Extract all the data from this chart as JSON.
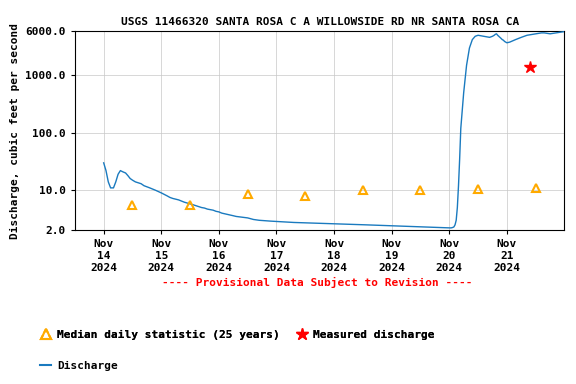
{
  "title": "USGS 11466320 SANTA ROSA C A WILLOWSIDE RD NR SANTA ROSA CA",
  "ylabel": "Discharge, cubic feet per second",
  "provisional_text": "---- Provisional Data Subject to Revision ----",
  "provisional_color": "#ff0000",
  "line_color": "#1a7abf",
  "triangle_color": "#ffaa00",
  "star_color": "#ff0000",
  "ylim_log": [
    2.0,
    6000.0
  ],
  "yticks": [
    2.0,
    10.0,
    100.0,
    1000.0,
    6000.0
  ],
  "ytick_labels": [
    "2.0",
    "10.0",
    "100.0",
    "1000.0",
    "6000.0"
  ],
  "discharge_x": [
    0.0,
    0.04,
    0.08,
    0.12,
    0.17,
    0.21,
    0.25,
    0.29,
    0.33,
    0.38,
    0.42,
    0.46,
    0.5,
    0.55,
    0.6,
    0.65,
    0.7,
    0.75,
    0.8,
    0.85,
    0.9,
    0.95,
    1.0,
    1.05,
    1.1,
    1.15,
    1.2,
    1.25,
    1.3,
    1.35,
    1.4,
    1.45,
    1.5,
    1.55,
    1.6,
    1.65,
    1.7,
    1.75,
    1.8,
    1.85,
    1.9,
    1.95,
    2.0,
    2.05,
    2.1,
    2.15,
    2.2,
    2.25,
    2.3,
    2.35,
    2.4,
    2.45,
    2.5,
    2.55,
    2.6,
    2.65,
    2.7,
    2.75,
    2.8,
    2.85,
    2.9,
    2.95,
    3.0,
    3.05,
    3.1,
    3.15,
    3.2,
    3.25,
    3.3,
    3.35,
    3.4,
    3.45,
    3.5,
    3.55,
    3.6,
    3.65,
    3.7,
    3.75,
    3.8,
    3.85,
    3.9,
    3.95,
    4.0,
    4.05,
    4.1,
    4.15,
    4.2,
    4.25,
    4.3,
    4.35,
    4.4,
    4.45,
    4.5,
    4.55,
    4.6,
    4.65,
    4.7,
    4.75,
    4.8,
    4.85,
    4.9,
    4.95,
    5.0,
    5.05,
    5.1,
    5.15,
    5.2,
    5.25,
    5.3,
    5.35,
    5.4,
    5.45,
    5.5,
    5.55,
    5.6,
    5.65,
    5.7,
    5.75,
    5.8,
    5.85,
    5.9,
    5.95,
    6.0,
    6.02,
    6.04,
    6.06,
    6.08,
    6.1,
    6.12,
    6.14,
    6.16,
    6.18,
    6.2,
    6.25,
    6.3,
    6.35,
    6.4,
    6.45,
    6.5,
    6.55,
    6.6,
    6.65,
    6.7,
    6.75,
    6.78,
    6.8,
    6.82,
    6.84,
    6.86,
    6.88,
    6.9,
    6.92,
    6.94,
    6.96,
    6.98,
    7.0,
    7.05,
    7.1,
    7.15,
    7.2,
    7.25,
    7.3,
    7.35,
    7.4,
    7.45,
    7.5,
    7.55,
    7.6,
    7.65,
    7.7,
    7.75,
    7.8,
    7.85,
    7.9,
    7.95,
    8.0
  ],
  "discharge_y": [
    30,
    22,
    14,
    11,
    11,
    14,
    19,
    22,
    21,
    20,
    18,
    16,
    15,
    14,
    13.5,
    13,
    12,
    11.5,
    11,
    10.5,
    10,
    9.5,
    9,
    8.5,
    8,
    7.5,
    7.2,
    7.0,
    6.8,
    6.5,
    6.2,
    6.0,
    5.8,
    5.6,
    5.4,
    5.2,
    5.0,
    4.9,
    4.7,
    4.6,
    4.5,
    4.3,
    4.2,
    4.0,
    3.9,
    3.8,
    3.7,
    3.6,
    3.5,
    3.45,
    3.4,
    3.35,
    3.3,
    3.2,
    3.1,
    3.05,
    3.0,
    2.98,
    2.95,
    2.92,
    2.9,
    2.88,
    2.86,
    2.84,
    2.82,
    2.8,
    2.78,
    2.76,
    2.75,
    2.74,
    2.73,
    2.72,
    2.71,
    2.7,
    2.69,
    2.68,
    2.67,
    2.66,
    2.65,
    2.64,
    2.63,
    2.62,
    2.61,
    2.6,
    2.59,
    2.58,
    2.57,
    2.56,
    2.55,
    2.54,
    2.53,
    2.52,
    2.51,
    2.5,
    2.49,
    2.48,
    2.47,
    2.46,
    2.45,
    2.44,
    2.43,
    2.42,
    2.41,
    2.4,
    2.39,
    2.38,
    2.37,
    2.36,
    2.35,
    2.34,
    2.33,
    2.32,
    2.31,
    2.3,
    2.29,
    2.28,
    2.27,
    2.26,
    2.25,
    2.24,
    2.23,
    2.22,
    2.21,
    2.21,
    2.22,
    2.25,
    2.3,
    2.5,
    3.0,
    5.0,
    12,
    35,
    120,
    500,
    1500,
    3000,
    4200,
    4800,
    5000,
    4900,
    4800,
    4700,
    4600,
    4800,
    5000,
    5200,
    5300,
    5000,
    4800,
    4600,
    4400,
    4200,
    4100,
    3900,
    3800,
    3700,
    3800,
    4000,
    4200,
    4400,
    4600,
    4800,
    5000,
    5100,
    5200,
    5300,
    5400,
    5500,
    5500,
    5400,
    5300,
    5400,
    5500,
    5600,
    5700,
    5800
  ],
  "median_x": [
    0.5,
    1.5,
    2.5,
    3.5,
    4.5,
    5.5,
    6.5,
    7.5
  ],
  "median_y": [
    5.5,
    5.5,
    8.5,
    8.0,
    10.0,
    10.0,
    10.5,
    11.0
  ],
  "measured_x": [
    7.4
  ],
  "measured_y": [
    1400.0
  ],
  "background_color": "#ffffff",
  "grid_color": "#c8c8c8",
  "legend_labels": {
    "triangle": "Median daily statistic (25 years)",
    "star": "Measured discharge",
    "line": "Discharge"
  }
}
